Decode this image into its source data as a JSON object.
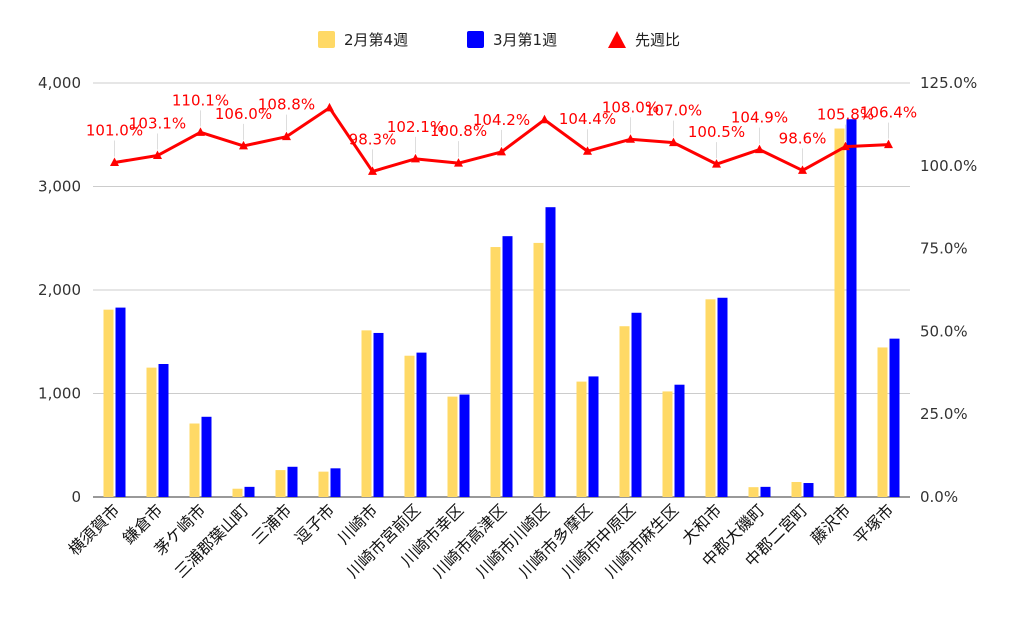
{
  "chart_data": {
    "type": "bar",
    "categories": [
      "横須賀市",
      "鎌倉市",
      "茅ケ崎市",
      "三浦郡葉山町",
      "三浦市",
      "逗子市",
      "川崎市",
      "川崎市宮前区",
      "川崎市幸区",
      "川崎市高津区",
      "川崎市川崎区",
      "川崎市多摩区",
      "川崎市中原区",
      "川崎市麻生区",
      "大和市",
      "中郡大磯町",
      "中郡二宮町",
      "藤沢市",
      "平塚市"
    ],
    "series": [
      {
        "name": "2月第4週",
        "type": "bar",
        "axis": "left",
        "color": "#FFD966",
        "values": [
          1810,
          1250,
          710,
          80,
          260,
          245,
          1610,
          1365,
          970,
          2415,
          2455,
          1115,
          1650,
          1020,
          1910,
          95,
          145,
          3560,
          1445
        ]
      },
      {
        "name": "3月第1週",
        "type": "bar",
        "axis": "left",
        "color": "#0000FF",
        "values": [
          1830,
          1285,
          775,
          98,
          292,
          277,
          1585,
          1395,
          990,
          2520,
          2800,
          1165,
          1780,
          1085,
          1925,
          98,
          135,
          3650,
          1530
        ]
      },
      {
        "name": "先週比",
        "type": "line",
        "axis": "right",
        "color": "#FF0000",
        "values": [
          101.0,
          103.1,
          110.1,
          106.0,
          108.8,
          117.5,
          98.3,
          102.1,
          100.8,
          104.2,
          113.9,
          104.4,
          108.0,
          107.0,
          100.5,
          104.9,
          98.6,
          105.8,
          106.4
        ],
        "labels": [
          "101.0%",
          "103.1%",
          "110.1%",
          "106.0%",
          "108.8%",
          "",
          "98.3%",
          "102.1%",
          "100.8%",
          "104.2%",
          "",
          "104.4%",
          "108.0%",
          "107.0%",
          "100.5%",
          "104.9%",
          "98.6%",
          "105.8%",
          "106.4%"
        ]
      }
    ],
    "y_left": {
      "min": 0,
      "max": 4000,
      "ticks": [
        0,
        1000,
        2000,
        3000,
        4000
      ],
      "tick_labels": [
        "0",
        "1,000",
        "2,000",
        "3,000",
        "4,000"
      ]
    },
    "y_right": {
      "min": 0,
      "max": 125,
      "ticks": [
        0,
        25,
        50,
        75,
        100,
        125
      ],
      "tick_labels": [
        "0.0%",
        "25.0%",
        "50.0%",
        "75.0%",
        "100.0%",
        "125.0%"
      ]
    },
    "grid": true,
    "legend": "top-center"
  }
}
